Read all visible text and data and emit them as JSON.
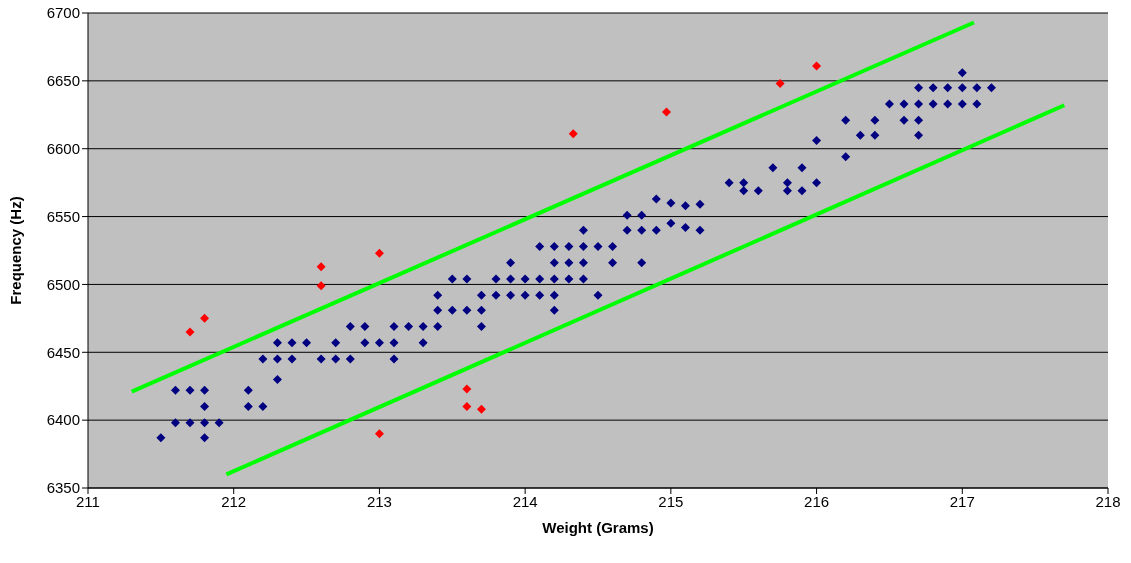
{
  "chart_data": {
    "type": "scatter",
    "xlabel": "Weight (Grams)",
    "ylabel": "Frequency (Hz)",
    "xlim": [
      211,
      218
    ],
    "xticks": [
      211,
      212,
      213,
      214,
      215,
      216,
      217,
      218
    ],
    "ylim": [
      6350,
      6700
    ],
    "yticks": [
      6350,
      6400,
      6450,
      6500,
      6550,
      6600,
      6650,
      6700
    ],
    "grid": "y",
    "legend": false,
    "marker": "diamond",
    "series": [
      {
        "color": "#000080",
        "x": [
          211.5,
          211.6,
          211.6,
          211.7,
          211.7,
          211.8,
          211.8,
          211.8,
          211.8,
          211.9,
          212.1,
          212.1,
          212.2,
          212.2,
          212.3,
          212.3,
          212.3,
          212.4,
          212.4,
          212.5,
          212.6,
          212.7,
          212.7,
          212.8,
          212.8,
          212.9,
          212.9,
          213.0,
          213.1,
          213.1,
          213.1,
          213.2,
          213.3,
          213.3,
          213.4,
          213.4,
          213.4,
          213.5,
          213.5,
          213.6,
          213.6,
          213.7,
          213.7,
          213.7,
          213.8,
          213.8,
          213.9,
          213.9,
          213.9,
          214.0,
          214.0,
          214.1,
          214.1,
          214.1,
          214.2,
          214.2,
          214.2,
          214.2,
          214.2,
          214.3,
          214.3,
          214.3,
          214.4,
          214.4,
          214.4,
          214.4,
          214.5,
          214.5,
          214.6,
          214.6,
          214.7,
          214.7,
          214.8,
          214.8,
          214.8,
          214.9,
          214.9,
          215.0,
          215.0,
          215.1,
          215.1,
          215.2,
          215.2,
          215.4,
          215.5,
          215.5,
          215.6,
          215.7,
          215.8,
          215.8,
          215.9,
          215.9,
          216.0,
          216.0,
          216.2,
          216.2,
          216.3,
          216.4,
          216.4,
          216.5,
          216.6,
          216.6,
          216.7,
          216.7,
          216.7,
          216.7,
          216.8,
          216.8,
          216.9,
          216.9,
          217.0,
          217.0,
          217.0,
          217.1,
          217.1,
          217.2
        ],
        "values": [
          6387,
          6422,
          6398,
          6422,
          6398,
          6422,
          6410,
          6398,
          6387,
          6398,
          6422,
          6410,
          6445,
          6410,
          6457,
          6445,
          6430,
          6457,
          6445,
          6457,
          6445,
          6457,
          6445,
          6469,
          6445,
          6469,
          6457,
          6457,
          6469,
          6457,
          6445,
          6469,
          6469,
          6457,
          6492,
          6481,
          6469,
          6504,
          6481,
          6504,
          6481,
          6492,
          6481,
          6469,
          6504,
          6492,
          6516,
          6504,
          6492,
          6504,
          6492,
          6528,
          6504,
          6492,
          6528,
          6516,
          6504,
          6492,
          6481,
          6528,
          6516,
          6504,
          6540,
          6528,
          6516,
          6504,
          6528,
          6492,
          6528,
          6516,
          6551,
          6540,
          6551,
          6540,
          6516,
          6563,
          6540,
          6560,
          6545,
          6558,
          6542,
          6559,
          6540,
          6575,
          6575,
          6569,
          6569,
          6586,
          6575,
          6569,
          6586,
          6569,
          6606,
          6575,
          6621,
          6594,
          6610,
          6621,
          6610,
          6633,
          6633,
          6621,
          6645,
          6633,
          6621,
          6610,
          6645,
          6633,
          6645,
          6633,
          6656,
          6645,
          6633,
          6645,
          6633,
          6645
        ]
      },
      {
        "color": "#ff0000",
        "x": [
          211.7,
          211.8,
          212.6,
          212.6,
          213.0,
          213.0,
          213.6,
          213.6,
          213.7,
          214.33,
          214.97,
          215.75,
          216.0
        ],
        "values": [
          6465,
          6475,
          6513,
          6499,
          6523,
          6390,
          6423,
          6410,
          6408,
          6611,
          6627,
          6648,
          6661
        ]
      },
      {
        "type": "line",
        "marker": "none",
        "color": "#00ff00",
        "x": [
          211.3,
          217.08
        ],
        "values": [
          6421,
          6693
        ]
      },
      {
        "type": "line",
        "marker": "none",
        "color": "#00ff00",
        "x": [
          211.95,
          217.7
        ],
        "values": [
          6360,
          6632
        ]
      }
    ]
  }
}
